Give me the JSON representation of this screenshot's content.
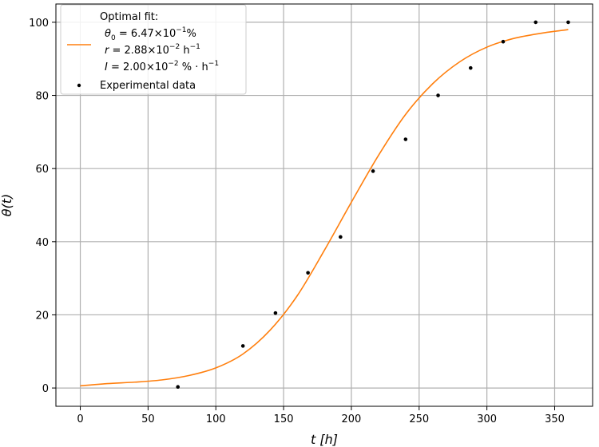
{
  "chart_data": {
    "type": "scatter",
    "xlabel": "t [h]",
    "ylabel": "θ(t)",
    "xlim": [
      -18,
      378
    ],
    "ylim": [
      -5,
      105
    ],
    "xticks": [
      0,
      50,
      100,
      150,
      200,
      250,
      300,
      350
    ],
    "yticks": [
      0,
      20,
      40,
      60,
      80,
      100
    ],
    "grid": true,
    "legend_position": "top-left",
    "fit_params": {
      "theta0": 0.647,
      "r": 0.0288,
      "I": 0.02
    },
    "series": [
      {
        "name": "Optimal fit",
        "kind": "line",
        "color": "#ff7f0e",
        "x": [
          0,
          20,
          40,
          60,
          80,
          100,
          120,
          140,
          160,
          180,
          200,
          220,
          240,
          260,
          280,
          300,
          320,
          340,
          360
        ],
        "y": [
          0.6,
          1.2,
          1.6,
          2.2,
          3.4,
          5.5,
          9.3,
          15.8,
          25.2,
          37.6,
          50.8,
          63.6,
          74.8,
          83.2,
          89.2,
          93.2,
          95.6,
          97.0,
          98.0
        ]
      },
      {
        "name": "Experimental data",
        "kind": "scatter",
        "color": "#000000",
        "x": [
          72,
          120,
          144,
          168,
          192,
          216,
          240,
          264,
          288,
          312,
          336,
          360
        ],
        "y": [
          0.3,
          11.5,
          20.5,
          31.5,
          41.3,
          59.3,
          68.0,
          80.0,
          87.5,
          94.7,
          100.0,
          100.0
        ]
      }
    ],
    "legend": {
      "fit_title": "Optimal fit:",
      "fit_line1_a": "θ",
      "fit_line1_sub": "0",
      "fit_line1_b": " = 6.47×10",
      "fit_line1_sup": "−1",
      "fit_line1_c": "%",
      "fit_line2_a": "r",
      "fit_line2_b": " = 2.88×10",
      "fit_line2_sup": "−2",
      "fit_line2_c": " h",
      "fit_line2_sup2": "−1",
      "fit_line3_a": "I",
      "fit_line3_b": " = 2.00×10",
      "fit_line3_sup": "−2",
      "fit_line3_c": " % · h",
      "fit_line3_sup2": "−1",
      "data_label": "Experimental data"
    }
  }
}
